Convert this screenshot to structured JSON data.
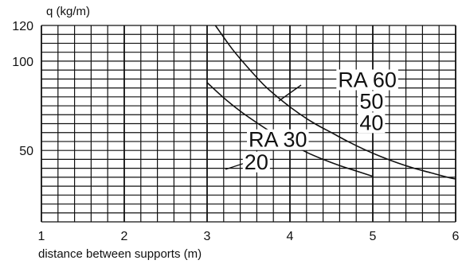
{
  "chart_data": {
    "type": "line",
    "title": "",
    "ylabel": "q (kg/m)",
    "xlabel": "distance between supports (m)",
    "xlim": [
      1,
      6
    ],
    "ylim": [
      10,
      120
    ],
    "x_ticks": [
      1,
      2,
      3,
      4,
      5,
      6
    ],
    "y_ticks": [
      50,
      100,
      120
    ],
    "grid": true,
    "series": [
      {
        "name": "RA 60 / 50 / 40",
        "x": [
          3.1,
          3.3,
          3.5,
          3.7,
          3.9,
          4.1,
          4.3,
          4.5,
          4.7,
          4.9,
          5.1,
          5.3,
          5.5,
          5.7,
          5.9,
          6.0
        ],
        "values": [
          120,
          107,
          96,
          86,
          78,
          71,
          65,
          60,
          55,
          50.5,
          46.5,
          43,
          40,
          37.5,
          35,
          34
        ]
      },
      {
        "name": "RA 30 / 20",
        "x": [
          3.0,
          3.2,
          3.4,
          3.6,
          3.8,
          4.0,
          4.2,
          4.4,
          4.6,
          4.8,
          5.0
        ],
        "values": [
          88,
          79.5,
          72,
          65.5,
          59.5,
          54,
          49,
          45,
          41.5,
          38.5,
          35.5
        ]
      }
    ],
    "annotations": [
      {
        "text": "RA 60",
        "x": 4.58,
        "y": 85.5
      },
      {
        "text": "50",
        "x": 4.84,
        "y": 73.5
      },
      {
        "text": "40",
        "x": 4.84,
        "y": 61.5
      },
      {
        "text": "RA 30",
        "x": 3.5,
        "y": 52
      },
      {
        "text": "20",
        "x": 3.45,
        "y": 39.5
      }
    ]
  }
}
